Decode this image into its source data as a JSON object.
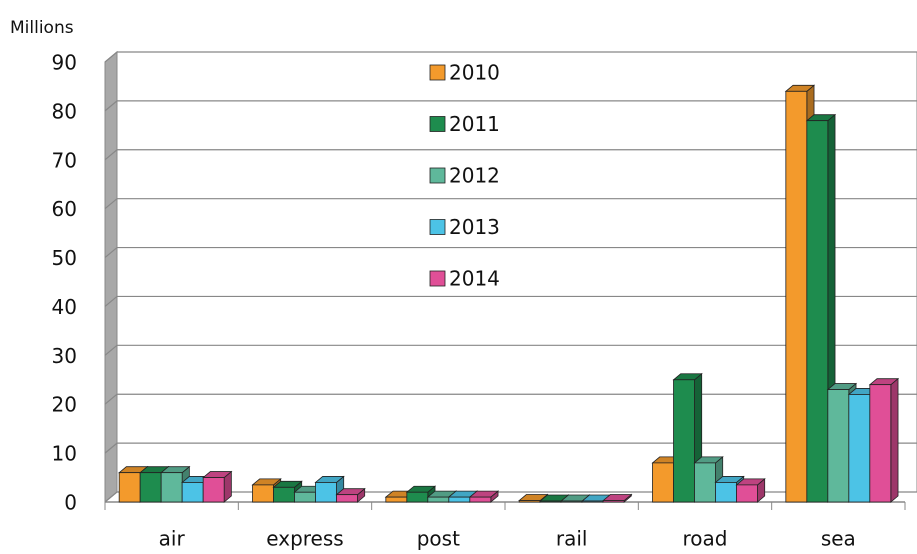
{
  "chart_data": {
    "type": "bar",
    "y_label": "Millions",
    "categories": [
      "air",
      "express",
      "post",
      "rail",
      "road",
      "sea"
    ],
    "series": [
      {
        "name": "2010",
        "color": "#f39a2c",
        "values": [
          6,
          3.5,
          1,
          0.3,
          8,
          84
        ]
      },
      {
        "name": "2011",
        "color": "#1e8c4e",
        "values": [
          6,
          3,
          2,
          0.2,
          25,
          78
        ]
      },
      {
        "name": "2012",
        "color": "#5fb89b",
        "values": [
          6,
          2,
          1,
          0.2,
          8,
          23
        ]
      },
      {
        "name": "2013",
        "color": "#4cc3e6",
        "values": [
          4,
          4,
          1,
          0.2,
          4,
          22
        ]
      },
      {
        "name": "2014",
        "color": "#e04f97",
        "values": [
          5,
          1.5,
          1,
          0.3,
          3.5,
          24
        ]
      }
    ],
    "ylim": [
      0,
      90
    ],
    "yticks": [
      0,
      10,
      20,
      30,
      40,
      50,
      60,
      70,
      80,
      90
    ],
    "grid": true
  }
}
